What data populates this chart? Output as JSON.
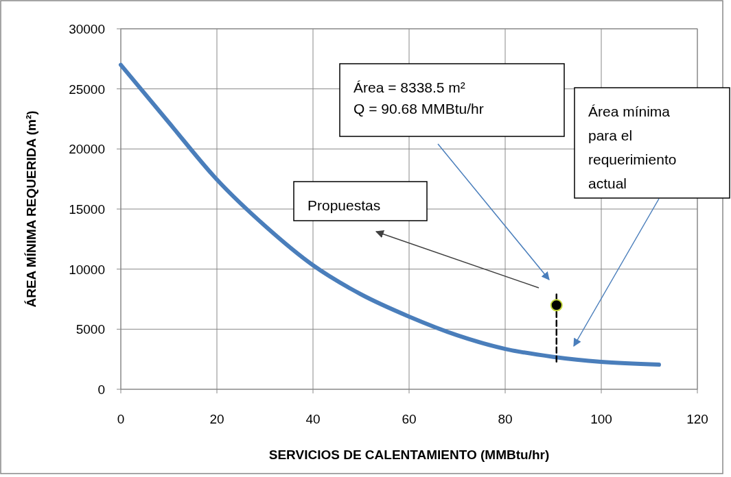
{
  "chart_data": {
    "type": "line",
    "xlabel": "SERVICIOS DE CALENTAMIENTO (MMBtu/hr)",
    "ylabel": "ÁREA MÍNIMA REQUERIDA (m²)",
    "xlim": [
      0,
      120
    ],
    "xticks": [
      0,
      20,
      40,
      60,
      80,
      100,
      120
    ],
    "ylim": [
      0,
      30000
    ],
    "yticks": [
      0,
      5000,
      10000,
      15000,
      20000,
      25000,
      30000
    ],
    "grid": true,
    "series": [
      {
        "color": "#4a7ebb",
        "marker": "none",
        "line_style": "solid",
        "x": [
          0,
          10,
          20,
          30,
          40,
          50,
          60,
          70,
          80,
          90,
          100,
          112
        ],
        "values": [
          27000,
          22200,
          17450,
          13600,
          10320,
          7900,
          6050,
          4500,
          3360,
          2700,
          2280,
          2050
        ]
      },
      {
        "color": "#000000",
        "marker": "none",
        "line_style": "dashed",
        "x": [
          90.68,
          90.68
        ],
        "values": [
          2300,
          7900
        ]
      },
      {
        "type": "scatter",
        "color": "#000000",
        "marker": "circle",
        "x": [
          90.68
        ],
        "values": [
          7000
        ]
      }
    ],
    "annotations": [
      "Área = 8338.5 m²\nQ = 90.68 MMBtu/hr",
      "Área mínima\npara el\nrequerimiento\nactual",
      "Propuestas"
    ]
  }
}
